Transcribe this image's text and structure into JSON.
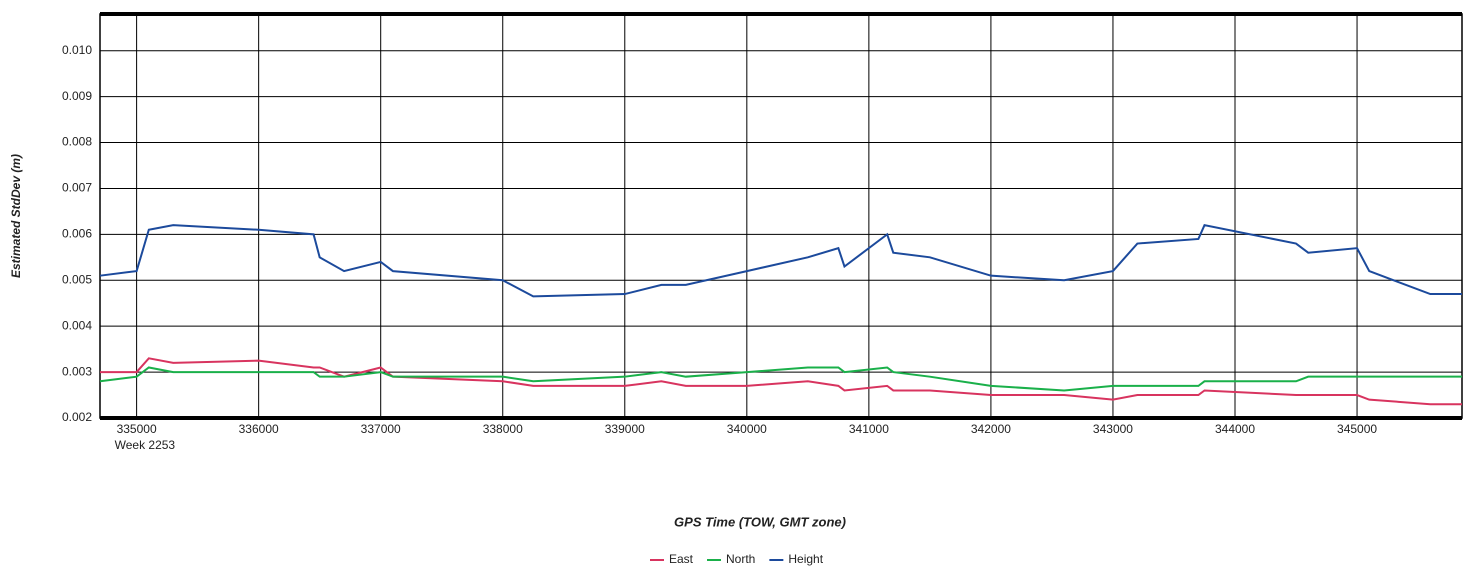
{
  "chart_data": {
    "type": "line",
    "ylabel": "Estimated StdDev (m)",
    "xlabel": "GPS Time (TOW, GMT zone)",
    "annotation": "Week 2253",
    "x": [
      334700,
      335000,
      335100,
      335300,
      336000,
      336450,
      336500,
      336700,
      337000,
      337100,
      338000,
      338250,
      339000,
      339300,
      339500,
      340000,
      340500,
      340750,
      340800,
      341150,
      341200,
      341500,
      342000,
      342600,
      343000,
      343200,
      343700,
      343750,
      344500,
      344600,
      345000,
      345100,
      345600,
      345860
    ],
    "series": [
      {
        "name": "East",
        "color": "#d8345f",
        "values": [
          0.003,
          0.003,
          0.0033,
          0.0032,
          0.00325,
          0.0031,
          0.0031,
          0.0029,
          0.0031,
          0.0029,
          0.0028,
          0.0027,
          0.0027,
          0.0028,
          0.0027,
          0.0027,
          0.0028,
          0.0027,
          0.0026,
          0.0027,
          0.0026,
          0.0026,
          0.0025,
          0.0025,
          0.0024,
          0.0025,
          0.0025,
          0.0026,
          0.0025,
          0.0025,
          0.0025,
          0.0024,
          0.0023,
          0.0023
        ]
      },
      {
        "name": "North",
        "color": "#1ab04a",
        "values": [
          0.0028,
          0.0029,
          0.0031,
          0.003,
          0.003,
          0.003,
          0.0029,
          0.0029,
          0.003,
          0.0029,
          0.0029,
          0.0028,
          0.0029,
          0.003,
          0.0029,
          0.003,
          0.0031,
          0.0031,
          0.003,
          0.0031,
          0.003,
          0.0029,
          0.0027,
          0.0026,
          0.0027,
          0.0027,
          0.0027,
          0.0028,
          0.0028,
          0.0029,
          0.0029,
          0.0029,
          0.0029,
          0.0029
        ]
      },
      {
        "name": "Height",
        "color": "#1c4a9c",
        "values": [
          0.0051,
          0.0052,
          0.0061,
          0.0062,
          0.0061,
          0.006,
          0.0055,
          0.0052,
          0.0054,
          0.0052,
          0.005,
          0.00465,
          0.0047,
          0.0049,
          0.0049,
          0.0052,
          0.0055,
          0.0057,
          0.0053,
          0.006,
          0.0056,
          0.0055,
          0.0051,
          0.005,
          0.0052,
          0.0058,
          0.0059,
          0.0062,
          0.0058,
          0.0056,
          0.0057,
          0.0052,
          0.0047,
          0.0047
        ]
      }
    ],
    "xlim": [
      334700,
      345860
    ],
    "xticks": [
      335000,
      336000,
      337000,
      338000,
      339000,
      340000,
      341000,
      342000,
      343000,
      344000,
      345000
    ],
    "ylim": [
      0.002,
      0.0108
    ],
    "yticks": [
      0.002,
      0.003,
      0.004,
      0.005,
      0.006,
      0.007,
      0.008,
      0.009,
      {
        "value": 0.01,
        "label": "0.010"
      }
    ],
    "grid": true,
    "legend": "bottom"
  }
}
